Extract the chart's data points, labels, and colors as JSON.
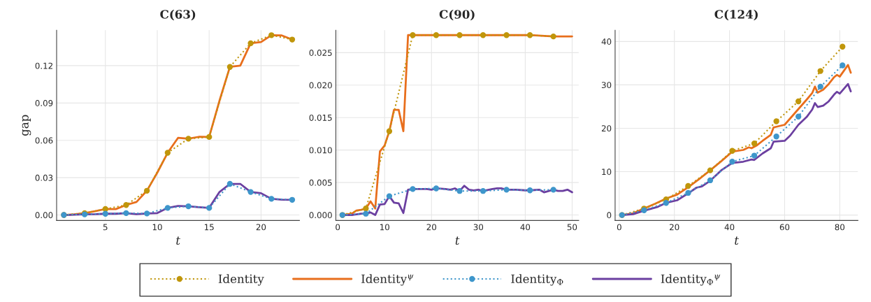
{
  "chart_data": [
    {
      "type": "line",
      "title": "C(63)",
      "xlabel": "t",
      "ylabel": "gap",
      "xlim": [
        0.3,
        23.7
      ],
      "ylim": [
        -0.0044,
        0.1485
      ],
      "xticks": [
        5,
        10,
        15,
        20
      ],
      "yticks": [
        {
          "value": 0,
          "label": "0.00"
        },
        0.03,
        0.06,
        0.09,
        0.12
      ],
      "grid": true,
      "legend": "bottom",
      "series": [
        {
          "name": "Identity",
          "color": "#c0960b",
          "line_style": "dotted",
          "marker": "circle",
          "x": [
            1,
            3,
            5,
            7,
            9,
            11,
            13,
            15,
            17,
            19,
            21,
            23
          ],
          "values": [
            0,
            0.0015,
            0.0048,
            0.008,
            0.0195,
            0.05,
            0.0613,
            0.0627,
            0.119,
            0.138,
            0.1445,
            0.141
          ]
        },
        {
          "name": "Identity$^{ψ}$",
          "color": "#e86e1c",
          "line_style": "solid",
          "marker": "none",
          "x": [
            1,
            2,
            3,
            4,
            5,
            6,
            7,
            8,
            9,
            10,
            11,
            12,
            13,
            14,
            15,
            16,
            17,
            18,
            19,
            20,
            21,
            22,
            23
          ],
          "values": [
            0,
            0.0005,
            0.0015,
            0.003,
            0.0048,
            0.0047,
            0.008,
            0.0105,
            0.0195,
            0.034,
            0.05,
            0.062,
            0.0613,
            0.0628,
            0.0627,
            0.092,
            0.119,
            0.12,
            0.138,
            0.139,
            0.1445,
            0.1443,
            0.141
          ]
        },
        {
          "name": "Identity$_{Φ}$",
          "color": "#3e96cb",
          "line_style": "dotted",
          "marker": "circle",
          "x": [
            1,
            3,
            5,
            7,
            9,
            11,
            13,
            15,
            17,
            19,
            21,
            23
          ],
          "values": [
            0,
            0.0005,
            0.001,
            0.0015,
            0.0012,
            0.0057,
            0.007,
            0.0057,
            0.025,
            0.0185,
            0.013,
            0.0122
          ]
        },
        {
          "name": "Identity$_{Φ}$$^{ψ}$",
          "color": "#6b3fa0",
          "line_style": "solid",
          "marker": "none",
          "x": [
            1,
            2,
            3,
            4,
            5,
            6,
            7,
            8,
            9,
            10,
            11,
            12,
            13,
            14,
            15,
            16,
            17,
            18,
            19,
            20,
            21,
            22,
            23
          ],
          "values": [
            0,
            0.0002,
            0.0005,
            0.0006,
            0.001,
            0.001,
            0.0015,
            0.0007,
            0.0012,
            0.0015,
            0.0057,
            0.0073,
            0.007,
            0.0063,
            0.0057,
            0.0185,
            0.025,
            0.025,
            0.0185,
            0.0175,
            0.013,
            0.0123,
            0.0122
          ]
        }
      ]
    },
    {
      "type": "line",
      "title": "C(90)",
      "xlabel": "t",
      "xlim": [
        -0.4,
        51.4
      ],
      "ylim": [
        -0.00084,
        0.02846
      ],
      "xticks": [
        0,
        10,
        20,
        30,
        40,
        50
      ],
      "yticks": [
        {
          "value": 0,
          "label": "0.000"
        },
        {
          "value": 0.005,
          "label": "0.005"
        },
        {
          "value": 0.01,
          "label": "0.010"
        },
        {
          "value": 0.015,
          "label": "0.015"
        },
        {
          "value": 0.02,
          "label": "0.020"
        },
        0.025
      ],
      "grid": true,
      "series": [
        {
          "color": "#c0960b",
          "line_style": "dotted",
          "marker": "circle",
          "x": [
            1,
            6,
            11,
            16,
            21,
            26,
            31,
            36,
            41,
            46
          ],
          "values": [
            0,
            0.001,
            0.0129,
            0.0277,
            0.0277,
            0.0277,
            0.0277,
            0.0277,
            0.0277,
            0.0275
          ]
        },
        {
          "color": "#e86e1c",
          "line_style": "solid",
          "marker": "none",
          "x": [
            1,
            2,
            3,
            4,
            5,
            6,
            7,
            8,
            9,
            10,
            11,
            12,
            13,
            14,
            15,
            16,
            21,
            26,
            31,
            36,
            41,
            46,
            50
          ],
          "values": [
            0,
            0.0001,
            0.0002,
            0.0007,
            0.0008,
            0.001,
            0.0021,
            0.001,
            0.0098,
            0.0107,
            0.0129,
            0.0162,
            0.0162,
            0.0129,
            0.0277,
            0.0277,
            0.0277,
            0.0277,
            0.0277,
            0.0277,
            0.0277,
            0.0275,
            0.0275
          ]
        },
        {
          "color": "#3e96cb",
          "line_style": "dotted",
          "marker": "circle",
          "x": [
            1,
            6,
            11,
            16,
            21,
            26,
            31,
            36,
            41,
            46
          ],
          "values": [
            0,
            0.0002,
            0.0029,
            0.004,
            0.0041,
            0.0037,
            0.0037,
            0.0039,
            0.0038,
            0.0039
          ]
        },
        {
          "color": "#6b3fa0",
          "line_style": "solid",
          "marker": "none",
          "x": [
            1,
            2,
            3,
            4,
            5,
            6,
            7,
            8,
            9,
            10,
            11,
            12,
            13,
            14,
            15,
            16,
            17,
            19,
            20,
            21,
            23,
            24,
            25,
            26,
            27,
            28,
            29,
            30,
            31,
            33,
            34,
            35,
            36,
            38,
            40,
            41,
            43,
            44,
            46,
            47,
            48,
            49,
            50
          ],
          "values": [
            0,
            0,
            0,
            0.0001,
            0.0002,
            0.0002,
            0.0004,
            0,
            0.0016,
            0.0017,
            0.0029,
            0.0019,
            0.0018,
            0.0003,
            0.0039,
            0.004,
            0.004,
            0.004,
            0.0039,
            0.0041,
            0.004,
            0.0039,
            0.0041,
            0.0037,
            0.0045,
            0.0039,
            0.0038,
            0.0039,
            0.0037,
            0.004,
            0.0041,
            0.0041,
            0.0039,
            0.0039,
            0.0038,
            0.0038,
            0.0039,
            0.0035,
            0.0039,
            0.0037,
            0.0037,
            0.0039,
            0.0035
          ]
        }
      ]
    },
    {
      "type": "line",
      "title": "C(124)",
      "xlabel": "t",
      "xlim": [
        -1.5,
        86.6
      ],
      "ylim": [
        -1.25,
        42.6
      ],
      "xticks": [
        0,
        20,
        40,
        60,
        80
      ],
      "yticks": [
        0,
        10,
        20,
        30,
        40
      ],
      "grid": true,
      "series": [
        {
          "color": "#c0960b",
          "line_style": "dotted",
          "marker": "circle",
          "x": [
            1,
            9,
            17,
            25,
            33,
            41,
            49,
            57,
            65,
            73,
            81
          ],
          "values": [
            0,
            1.5,
            3.6,
            6.7,
            10.3,
            14.8,
            16.5,
            21.6,
            26.2,
            33.2,
            38.8
          ]
        },
        {
          "color": "#e86e1c",
          "line_style": "solid",
          "marker": "none",
          "x": [
            1,
            5,
            9,
            13,
            17,
            21,
            25,
            29,
            33,
            37,
            41,
            45,
            47,
            48,
            50,
            52,
            55,
            56,
            60,
            64,
            68,
            70,
            71,
            72,
            74,
            76,
            78,
            79,
            80,
            83,
            84
          ],
          "values": [
            0,
            0.4,
            1.5,
            2.6,
            3.8,
            4.7,
            6.4,
            8.3,
            10.3,
            12.4,
            14.6,
            15.0,
            15.6,
            15.4,
            16.1,
            17.1,
            18.5,
            20.2,
            20.8,
            23.7,
            26.6,
            28.1,
            29.6,
            28.2,
            28.9,
            30.2,
            31.8,
            32.3,
            31.9,
            34.6,
            32.8
          ]
        },
        {
          "color": "#3e96cb",
          "line_style": "dotted",
          "marker": "circle",
          "x": [
            1,
            9,
            17,
            25,
            33,
            41,
            49,
            57,
            65,
            73,
            81
          ],
          "values": [
            0,
            1.1,
            2.8,
            5.1,
            8.0,
            12.3,
            13.7,
            18.1,
            22.7,
            29.6,
            34.5
          ]
        },
        {
          "color": "#6b3fa0",
          "line_style": "solid",
          "marker": "none",
          "x": [
            1,
            5,
            9,
            14,
            17,
            21,
            25,
            28,
            30,
            33,
            37,
            41,
            45,
            48,
            49,
            52,
            55,
            56,
            60,
            62,
            65,
            68,
            70,
            71,
            72,
            74,
            76,
            78,
            79,
            80,
            83,
            84
          ],
          "values": [
            0,
            0.2,
            1.0,
            1.9,
            2.8,
            3.4,
            5.0,
            6.3,
            6.6,
            7.9,
            10.3,
            12.0,
            12.3,
            12.8,
            12.7,
            14.2,
            15.4,
            16.9,
            17.1,
            18.3,
            20.8,
            22.6,
            24.3,
            25.8,
            24.9,
            25.2,
            26.2,
            27.8,
            28.4,
            28.0,
            30.2,
            28.5
          ]
        }
      ]
    }
  ]
}
